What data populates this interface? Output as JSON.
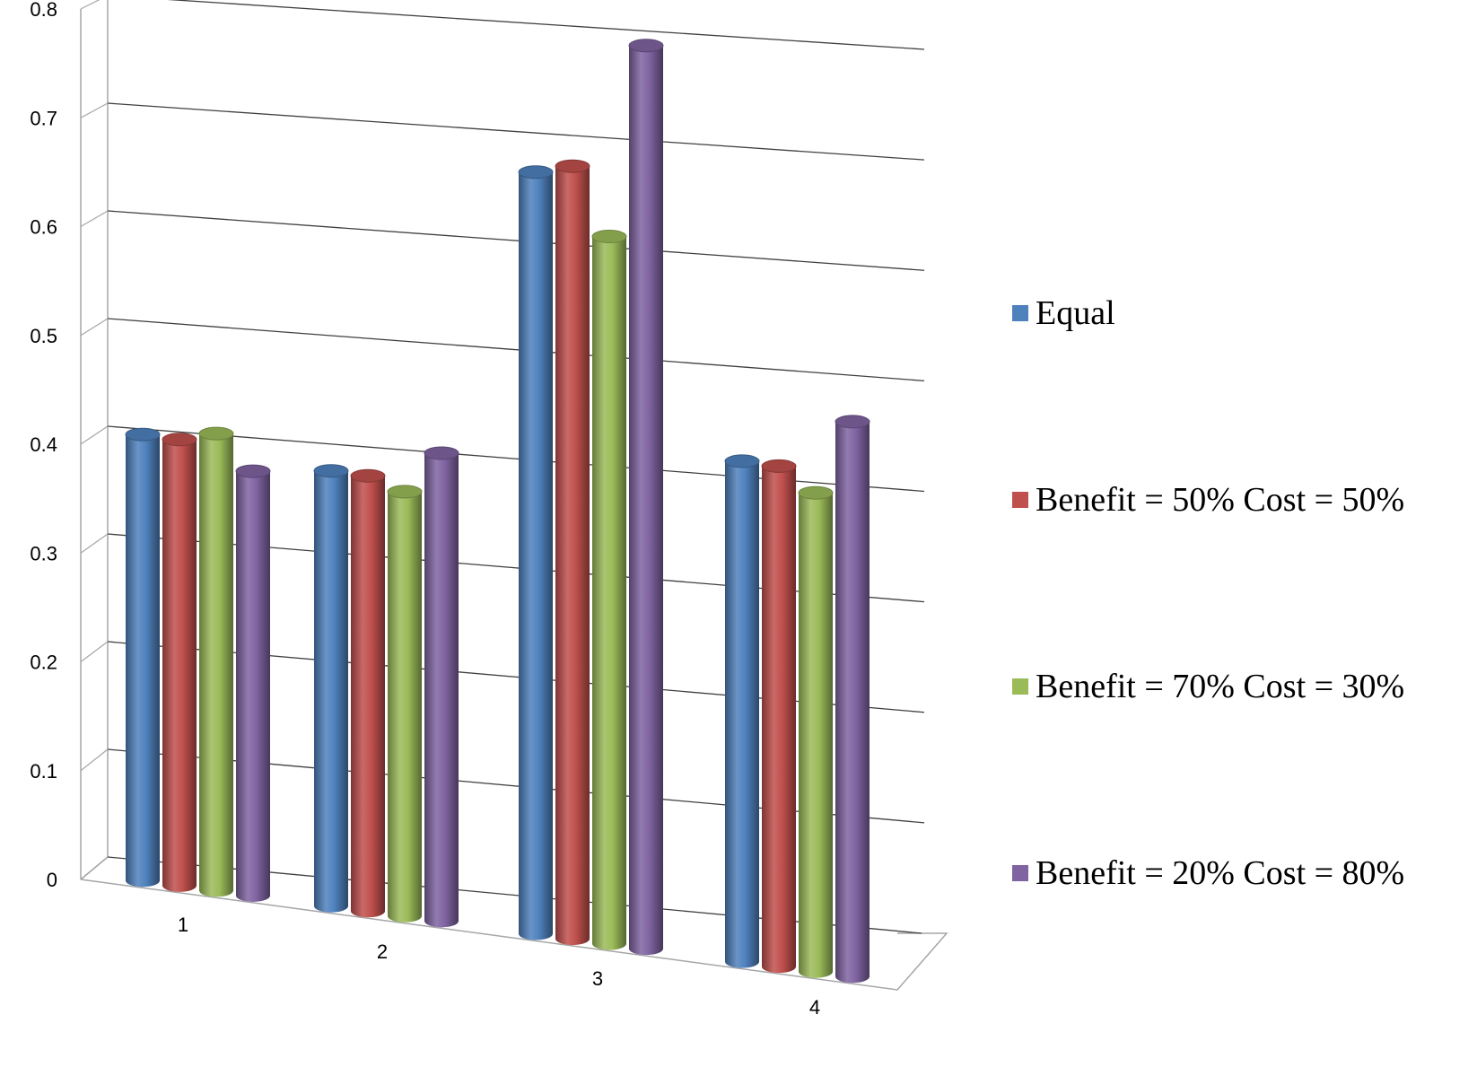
{
  "chart_data": {
    "type": "bar",
    "variant": "3d-cylinder-clustered",
    "categories": [
      "1",
      "2",
      "3",
      "4"
    ],
    "series": [
      {
        "name": "Equal",
        "color": "#4F81BD",
        "values": [
          0.41,
          0.4,
          0.7,
          0.46
        ]
      },
      {
        "name": "Benefit = 50% Cost = 50%",
        "color": "#C0504D",
        "values": [
          0.41,
          0.4,
          0.71,
          0.46
        ]
      },
      {
        "name": "Benefit = 70% Cost = 30%",
        "color": "#9BBB59",
        "values": [
          0.42,
          0.39,
          0.65,
          0.44
        ]
      },
      {
        "name": "Benefit = 20% Cost = 80%",
        "color": "#8064A2",
        "values": [
          0.39,
          0.43,
          0.83,
          0.51
        ]
      }
    ],
    "title": "",
    "xlabel": "",
    "ylabel": "",
    "ylim": [
      0,
      0.8
    ],
    "yticks": [
      "0",
      "0.1",
      "0.2",
      "0.3",
      "0.4",
      "0.5",
      "0.6",
      "0.7",
      "0.8"
    ],
    "grid": true,
    "legend_position": "right"
  }
}
